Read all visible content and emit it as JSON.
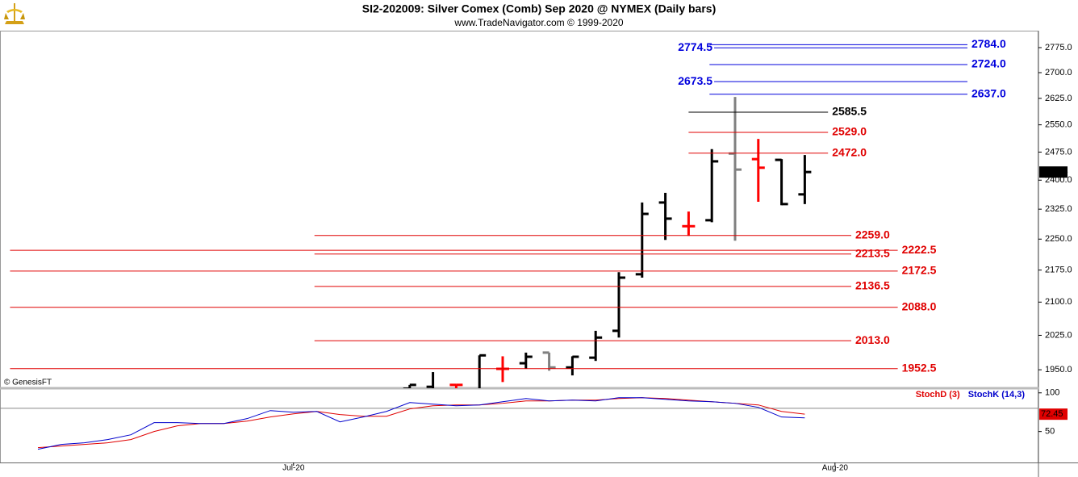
{
  "chart_data": [
    {
      "type": "ohlc",
      "title": "SI2-202009:  Silver Comex (Comb) Sep 2020 @ NYMEX  (Daily bars)",
      "subtitle": "www.TradeNavigator.com © 1999-2020",
      "watermark": "© GenesisFT",
      "log_scale": true,
      "xlim": [
        -1.632,
        43.056
      ],
      "ylim": [
        1911,
        2827
      ],
      "yticks": [
        {
          "value": 1950,
          "label": "1950.0"
        },
        {
          "value": 2025,
          "label": "2025.0"
        },
        {
          "value": 2100,
          "label": "2100.0"
        },
        {
          "value": 2175,
          "label": "2175.0"
        },
        {
          "value": 2250,
          "label": "2250.0"
        },
        {
          "value": 2325,
          "label": "2325.0"
        },
        {
          "value": 2400,
          "label": "2400.0"
        },
        {
          "value": 2475,
          "label": "2475.0"
        },
        {
          "value": 2550,
          "label": "2550.0"
        },
        {
          "value": 2625,
          "label": "2625.0"
        },
        {
          "value": 2700,
          "label": "2700.0"
        },
        {
          "value": 2775,
          "label": "2775.0"
        }
      ],
      "x": [
        16,
        17,
        18,
        19,
        20,
        21,
        22,
        23,
        24,
        25,
        26,
        27,
        28,
        29,
        30,
        31,
        32,
        33
      ],
      "open": [
        1910,
        1914,
        1918,
        1905,
        1952,
        1964,
        1987,
        1955,
        1976,
        2035,
        2165,
        2342,
        2282,
        2297,
        2471,
        2456,
        2454,
        2363
      ],
      "high": [
        1918,
        1945,
        1918,
        1981,
        1979,
        1987,
        1987,
        1979,
        2035,
        2170,
        2342,
        2367,
        2319,
        2483,
        2629,
        2511,
        2456,
        2467
      ],
      "low": [
        1895,
        1895,
        1900,
        1895,
        1924,
        1952,
        1948,
        1938,
        1969,
        2020,
        2157,
        2248,
        2258,
        2292,
        2246,
        2344,
        2335,
        2338
      ],
      "close": [
        1918,
        1905,
        1918,
        1981,
        1952,
        1978,
        1955,
        1978,
        2020,
        2157,
        2313,
        2301,
        2282,
        2450,
        2428,
        2433,
        2338,
        2421.5
      ],
      "bar_colors": [
        "#000000",
        "#000000",
        "#ff0000",
        "#000000",
        "#ff0000",
        "#000000",
        "#808080",
        "#000000",
        "#000000",
        "#000000",
        "#000000",
        "#000000",
        "#ff0000",
        "#000000",
        "#808080",
        "#ff0000",
        "#000000",
        "#000000"
      ],
      "levels": [
        {
          "value": 2784,
          "label": "2784.0",
          "color": "#0000dd",
          "x": [
            28.9,
            40.0
          ],
          "label_side": "right"
        },
        {
          "value": 2774.5,
          "label": "2774.5",
          "color": "#0000dd",
          "x": [
            29.1,
            40.0
          ],
          "label_side": "left"
        },
        {
          "value": 2724,
          "label": "2724.0",
          "color": "#0000dd",
          "x": [
            28.9,
            40.0
          ],
          "label_side": "right"
        },
        {
          "value": 2673.5,
          "label": "2673.5",
          "color": "#0000dd",
          "x": [
            29.1,
            40.0
          ],
          "label_side": "left"
        },
        {
          "value": 2637,
          "label": "2637.0",
          "color": "#0000dd",
          "x": [
            28.9,
            40.0
          ],
          "label_side": "right"
        },
        {
          "value": 2585.5,
          "label": "2585.5",
          "color": "#000000",
          "x": [
            28,
            34
          ],
          "label_side": "right"
        },
        {
          "value": 2529,
          "label": "2529.0",
          "color": "#e00000",
          "x": [
            28,
            34
          ],
          "label_side": "right"
        },
        {
          "value": 2472,
          "label": "2472.0",
          "color": "#e00000",
          "x": [
            28,
            34
          ],
          "label_side": "right"
        },
        {
          "value": 2259,
          "label": "2259.0",
          "color": "#e00000",
          "x": [
            11.9,
            35
          ],
          "label_side": "right"
        },
        {
          "value": 2222.5,
          "label": "2222.5",
          "color": "#e00000",
          "x": [
            -1.2,
            37
          ],
          "label_side": "right"
        },
        {
          "value": 2213.5,
          "label": "2213.5",
          "color": "#e00000",
          "x": [
            11.9,
            35
          ],
          "label_side": "right"
        },
        {
          "value": 2172.5,
          "label": "2172.5",
          "color": "#e00000",
          "x": [
            -1.2,
            37
          ],
          "label_side": "right"
        },
        {
          "value": 2136.5,
          "label": "2136.5",
          "color": "#e00000",
          "x": [
            11.9,
            35
          ],
          "label_side": "right"
        },
        {
          "value": 2088,
          "label": "2088.0",
          "color": "#e00000",
          "x": [
            -1.2,
            37
          ],
          "label_side": "right"
        },
        {
          "value": 2013,
          "label": "2013.0",
          "color": "#e00000",
          "x": [
            11.9,
            35
          ],
          "label_side": "right"
        },
        {
          "value": 1952.5,
          "label": "1952.5",
          "color": "#e00000",
          "x": [
            -1.2,
            37
          ],
          "label_side": "right"
        }
      ]
    },
    {
      "type": "line",
      "xlim": [
        -1.632,
        43.056
      ],
      "ylim": [
        10,
        106
      ],
      "yticks": [
        50,
        100
      ],
      "xticks": [
        {
          "value": 11,
          "label": "Jul-20"
        },
        {
          "value": 34.3,
          "label": "Aug-20"
        }
      ],
      "reference_lines": [
        80
      ],
      "x": [
        0,
        1,
        2,
        3,
        4,
        5,
        6,
        7,
        8,
        9,
        10,
        11,
        12,
        13,
        14,
        15,
        16,
        17,
        18,
        19,
        20,
        21,
        22,
        23,
        24,
        25,
        26,
        27,
        28,
        29,
        30,
        31,
        32,
        33
      ],
      "series": [
        {
          "name": "StochD (3)",
          "color": "#e00000",
          "values": [
            29.2,
            31.3,
            33.3,
            35.4,
            39.6,
            50.0,
            57.3,
            60.4,
            60.4,
            63.5,
            68.8,
            72.9,
            76.0,
            71.9,
            69.8,
            69.8,
            79.2,
            83.3,
            84.4,
            84.4,
            86.5,
            89.6,
            89.6,
            90.6,
            90.6,
            92.7,
            93.8,
            92.7,
            90.6,
            88.5,
            86.5,
            84.4,
            76.0,
            72.45
          ]
        },
        {
          "name": "StochK (14,3)",
          "color": "#0000cc",
          "values": [
            27.1,
            33.3,
            35.4,
            39.6,
            45.8,
            61.5,
            61.5,
            60.4,
            60.4,
            66.7,
            77.1,
            75.0,
            76.0,
            62.5,
            68.8,
            76.0,
            87.5,
            85.4,
            83.3,
            84.4,
            88.5,
            92.7,
            89.6,
            90.6,
            89.6,
            93.8,
            93.8,
            91.7,
            89.6,
            88.5,
            86.5,
            81.3,
            68.8,
            67.7
          ]
        }
      ]
    }
  ]
}
